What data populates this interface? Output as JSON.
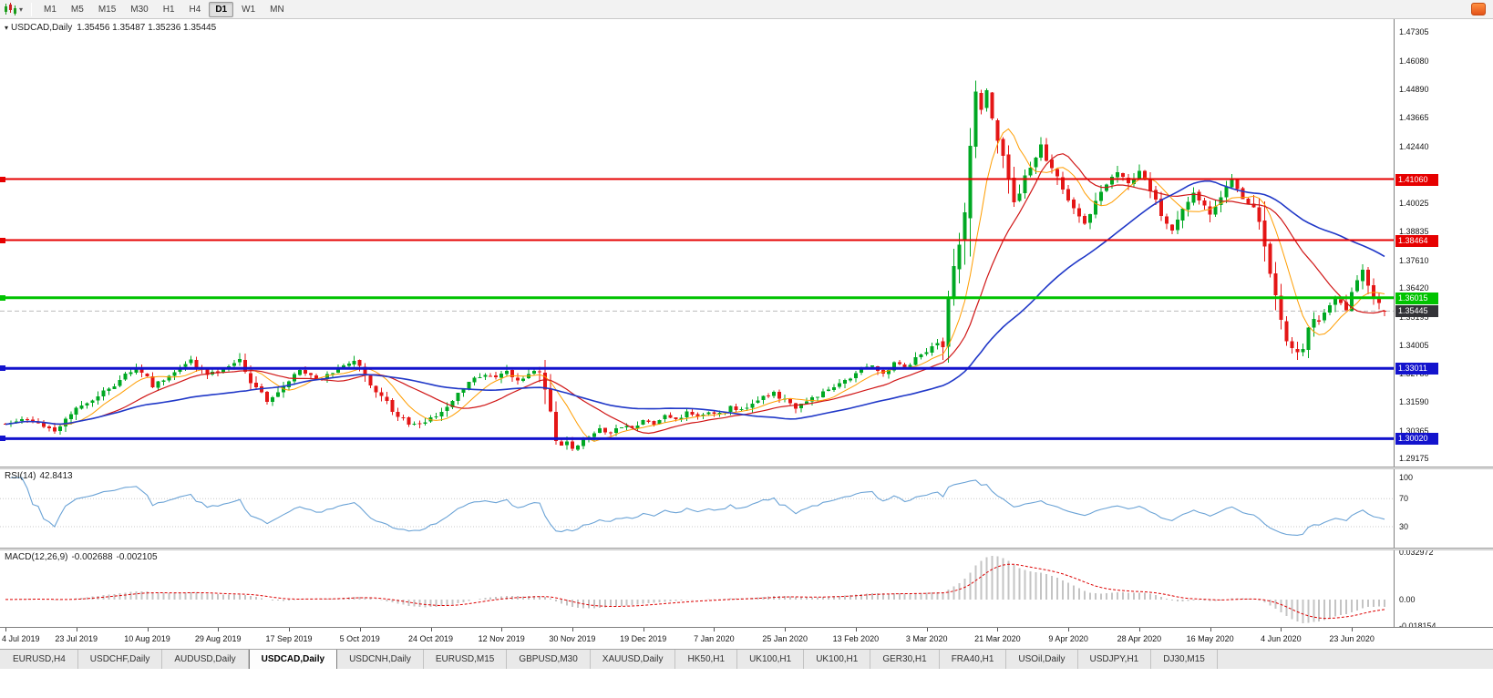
{
  "toolbar": {
    "timeframes": [
      "M1",
      "M5",
      "M15",
      "M30",
      "H1",
      "H4",
      "D1",
      "W1",
      "MN"
    ],
    "active_timeframe": "D1"
  },
  "chart": {
    "title": "USDCAD,Daily",
    "ohlc": "1.35456 1.35487 1.35236 1.35445"
  },
  "price_axis": {
    "ticks": [
      1.47305,
      1.4608,
      1.4489,
      1.43665,
      1.4244,
      1.40025,
      1.38835,
      1.3761,
      1.3642,
      1.35195,
      1.34005,
      1.3278,
      1.3159,
      1.30365,
      1.29175
    ]
  },
  "x_axis": {
    "labels": [
      "4 Jul 2019",
      "23 Jul 2019",
      "10 Aug 2019",
      "29 Aug 2019",
      "17 Sep 2019",
      "5 Oct 2019",
      "24 Oct 2019",
      "12 Nov 2019",
      "30 Nov 2019",
      "19 Dec 2019",
      "7 Jan 2020",
      "25 Jan 2020",
      "13 Feb 2020",
      "3 Mar 2020",
      "21 Mar 2020",
      "9 Apr 2020",
      "28 Apr 2020",
      "16 May 2020",
      "4 Jun 2020",
      "23 Jun 2020"
    ]
  },
  "indicators": {
    "rsi": {
      "label": "RSI(14)",
      "value": "42.8413",
      "levels": [
        70,
        30
      ],
      "axis_labels": [
        {
          "label": "100",
          "value": 100
        },
        {
          "label": "70",
          "value": 70
        },
        {
          "label": "30",
          "value": 30
        }
      ]
    },
    "macd": {
      "label": "MACD(12,26,9)",
      "value_main": "-0.002688",
      "value_signal": "-0.002105",
      "axis_labels": [
        {
          "label": "0.032972",
          "value": 0.032972
        },
        {
          "label": "0.00",
          "value": 0
        },
        {
          "label": "-0.018154",
          "value": -0.018154
        }
      ]
    }
  },
  "levels": {
    "h_lines": [
      {
        "price": 1.4106,
        "color": "#e60000",
        "thickness": 2
      },
      {
        "price": 1.38464,
        "color": "#e60000",
        "thickness": 2
      },
      {
        "price": 1.36015,
        "color": "#00c300",
        "thickness": 3
      },
      {
        "price": 1.33011,
        "color": "#1313cd",
        "thickness": 3
      },
      {
        "price": 1.3002,
        "color": "#1313cd",
        "thickness": 3
      }
    ],
    "current_price": {
      "value": 1.35445,
      "color": "#333338",
      "line_color": "#bcbcbc"
    }
  },
  "tabs": {
    "items": [
      "EURUSD,H4",
      "USDCHF,Daily",
      "AUDUSD,Daily",
      "USDCAD,Daily",
      "USDCNH,Daily",
      "EURUSD,M15",
      "GBPUSD,M30",
      "XAUUSD,Daily",
      "HK50,H1",
      "UK100,H1",
      "UK100,H1",
      "GER30,H1",
      "FRA40,H1",
      "USOil,Daily",
      "USDJPY,H1",
      "DJ30,M15"
    ],
    "active_index": 3
  },
  "chart_data": {
    "type": "candlestick",
    "symbol": "USDCAD",
    "timeframe": "Daily",
    "num_candles": 254,
    "price_range": [
      1.2895,
      1.4755
    ],
    "last_candle": {
      "open": 1.35456,
      "high": 1.35487,
      "low": 1.35236,
      "close": 1.35445
    },
    "moving_average_periods": {
      "fast": 8,
      "mid": 18,
      "slow": 45
    },
    "colors": {
      "up": "#00a823",
      "down": "#e41616",
      "ma_fast": "#ff9d00",
      "ma_mid": "#d01616",
      "ma_slow": "#2038c8",
      "rsi_line": "#6ba3d6",
      "macd_hist": "#c4c4c4",
      "macd_signal": "#dd0000"
    },
    "price_path": [
      [
        0,
        1.3065
      ],
      [
        4,
        1.3085
      ],
      [
        9,
        1.3035
      ],
      [
        13,
        1.3125
      ],
      [
        19,
        1.3215
      ],
      [
        24,
        1.3305
      ],
      [
        27,
        1.323
      ],
      [
        30,
        1.327
      ],
      [
        34,
        1.333
      ],
      [
        37,
        1.327
      ],
      [
        40,
        1.33
      ],
      [
        43,
        1.333
      ],
      [
        45,
        1.324
      ],
      [
        48,
        1.3165
      ],
      [
        51,
        1.323
      ],
      [
        54,
        1.3295
      ],
      [
        57,
        1.325
      ],
      [
        60,
        1.3285
      ],
      [
        62,
        1.331
      ],
      [
        64,
        1.333
      ],
      [
        66,
        1.327
      ],
      [
        68,
        1.321
      ],
      [
        70,
        1.315
      ],
      [
        72,
        1.31
      ],
      [
        74,
        1.3065
      ],
      [
        76,
        1.306
      ],
      [
        78,
        1.309
      ],
      [
        80,
        1.312
      ],
      [
        82,
        1.317
      ],
      [
        84,
        1.322
      ],
      [
        86,
        1.326
      ],
      [
        88,
        1.328
      ],
      [
        90,
        1.3255
      ],
      [
        92,
        1.329
      ],
      [
        94,
        1.3245
      ],
      [
        96,
        1.327
      ],
      [
        98,
        1.3295
      ],
      [
        99,
        1.32
      ],
      [
        100,
        1.309
      ],
      [
        101,
        1.3
      ],
      [
        102,
        1.297
      ],
      [
        103,
        1.299
      ],
      [
        104,
        1.2958
      ],
      [
        105,
        1.2972
      ],
      [
        106,
        1.2995
      ],
      [
        107,
        1.3015
      ],
      [
        109,
        1.304
      ],
      [
        111,
        1.3025
      ],
      [
        113,
        1.3055
      ],
      [
        115,
        1.3045
      ],
      [
        117,
        1.3075
      ],
      [
        119,
        1.306
      ],
      [
        121,
        1.31
      ],
      [
        123,
        1.3085
      ],
      [
        125,
        1.311
      ],
      [
        127,
        1.3095
      ],
      [
        129,
        1.3115
      ],
      [
        131,
        1.3105
      ],
      [
        133,
        1.3135
      ],
      [
        135,
        1.312
      ],
      [
        137,
        1.315
      ],
      [
        139,
        1.318
      ],
      [
        141,
        1.3195
      ],
      [
        143,
        1.3165
      ],
      [
        145,
        1.313
      ],
      [
        147,
        1.3155
      ],
      [
        149,
        1.3185
      ],
      [
        151,
        1.3215
      ],
      [
        153,
        1.324
      ],
      [
        155,
        1.3265
      ],
      [
        157,
        1.3295
      ],
      [
        159,
        1.331
      ],
      [
        161,
        1.328
      ],
      [
        163,
        1.333
      ],
      [
        165,
        1.3305
      ],
      [
        167,
        1.3345
      ],
      [
        169,
        1.337
      ],
      [
        171,
        1.342
      ],
      [
        172,
        1.339
      ],
      [
        173,
        1.356
      ],
      [
        174,
        1.37
      ],
      [
        175,
        1.385
      ],
      [
        176,
        1.4
      ],
      [
        177,
        1.423
      ],
      [
        178,
        1.449
      ],
      [
        179,
        1.442
      ],
      [
        180,
        1.448
      ],
      [
        181,
        1.439
      ],
      [
        182,
        1.43
      ],
      [
        183,
        1.418
      ],
      [
        184,
        1.409
      ],
      [
        185,
        1.4
      ],
      [
        186,
        1.406
      ],
      [
        188,
        1.416
      ],
      [
        190,
        1.424
      ],
      [
        192,
        1.415
      ],
      [
        194,
        1.406
      ],
      [
        196,
        1.399
      ],
      [
        198,
        1.393
      ],
      [
        200,
        1.401
      ],
      [
        202,
        1.409
      ],
      [
        204,
        1.414
      ],
      [
        206,
        1.408
      ],
      [
        208,
        1.415
      ],
      [
        210,
        1.406
      ],
      [
        212,
        1.396
      ],
      [
        214,
        1.39
      ],
      [
        216,
        1.398
      ],
      [
        218,
        1.405
      ],
      [
        220,
        1.4
      ],
      [
        221,
        1.3965
      ],
      [
        223,
        1.404
      ],
      [
        225,
        1.409
      ],
      [
        227,
        1.403
      ],
      [
        229,
        1.3985
      ],
      [
        230,
        1.393
      ],
      [
        231,
        1.383
      ],
      [
        232,
        1.37
      ],
      [
        233,
        1.36
      ],
      [
        234,
        1.35
      ],
      [
        235,
        1.343
      ],
      [
        236,
        1.339
      ],
      [
        237,
        1.336
      ],
      [
        238,
        1.34
      ],
      [
        239,
        1.346
      ],
      [
        240,
        1.352
      ],
      [
        241,
        1.349
      ],
      [
        242,
        1.353
      ],
      [
        243,
        1.358
      ],
      [
        244,
        1.361
      ],
      [
        245,
        1.358
      ],
      [
        246,
        1.355
      ],
      [
        247,
        1.362
      ],
      [
        248,
        1.367
      ],
      [
        249,
        1.3705
      ],
      [
        250,
        1.3655
      ],
      [
        251,
        1.3605
      ],
      [
        252,
        1.357
      ],
      [
        253,
        1.3545
      ]
    ]
  }
}
